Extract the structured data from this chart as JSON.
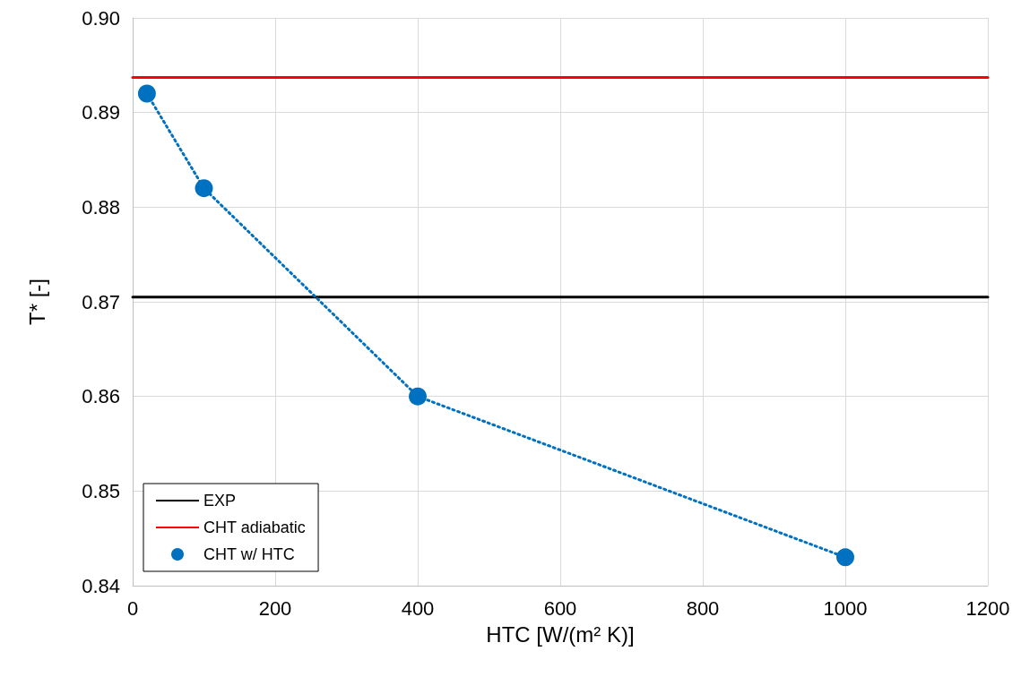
{
  "chart_data": {
    "type": "line",
    "xlabel": "HTC [W/(m² K)]",
    "ylabel": "T* [-]",
    "xlim": [
      0,
      1200
    ],
    "xticks": [
      0,
      200,
      400,
      600,
      800,
      1000,
      1200
    ],
    "ylim": [
      0.84,
      0.9
    ],
    "yticks": [
      0.84,
      0.85,
      0.86,
      0.87,
      0.88,
      0.89,
      {
        "value": 0.9,
        "label": "0.90"
      }
    ],
    "grid": true,
    "legend": "bottom left",
    "series": [
      {
        "name": "EXP",
        "color": "#000000",
        "x": [
          0,
          1200
        ],
        "values": [
          0.8705,
          0.8705
        ],
        "marker": "none",
        "line_style": "solid"
      },
      {
        "name": "CHT adiabatic",
        "color": "#ff0000",
        "x": [
          0,
          1200
        ],
        "values": [
          0.8937,
          0.8937
        ],
        "marker": "none",
        "line_style": "solid"
      },
      {
        "name": "CHT w/ HTC",
        "color": "#0070c0",
        "x": [
          20,
          100,
          400,
          1000
        ],
        "values": [
          0.892,
          0.882,
          0.86,
          0.843
        ],
        "marker": "circle",
        "line_style": "dotted"
      }
    ]
  }
}
